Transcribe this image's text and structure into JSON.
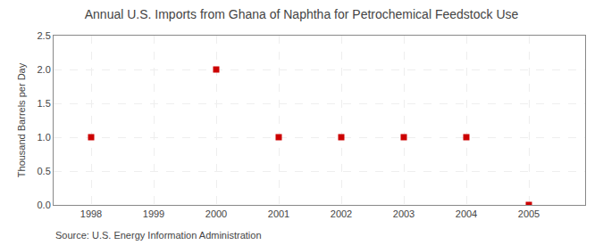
{
  "chart_data": {
    "type": "scatter",
    "title": "Annual U.S. Imports from Ghana of Naphtha for Petrochemical Feedstock Use",
    "ylabel": "Thousand Barrels per Day",
    "annotations": [
      "Source: U.S. Energy Information Administration"
    ],
    "x": [
      1998,
      2000,
      2001,
      2002,
      2003,
      2004,
      2005
    ],
    "values": [
      1.0,
      2.0,
      1.0,
      1.0,
      1.0,
      1.0,
      0.0
    ],
    "color": "#CC0000",
    "marker": "square",
    "xlim": [
      1997.4,
      2005.9
    ],
    "ylim": [
      0.0,
      2.5
    ],
    "xticks": [
      1998,
      1999,
      2000,
      2001,
      2002,
      2003,
      2004,
      2005
    ],
    "yticks": [
      {
        "value": 0.0,
        "label": "0.0"
      },
      0.5,
      {
        "value": 1.0,
        "label": "1.0"
      },
      1.5,
      {
        "value": 2.0,
        "label": "2.0"
      },
      2.5
    ],
    "grid": true
  }
}
